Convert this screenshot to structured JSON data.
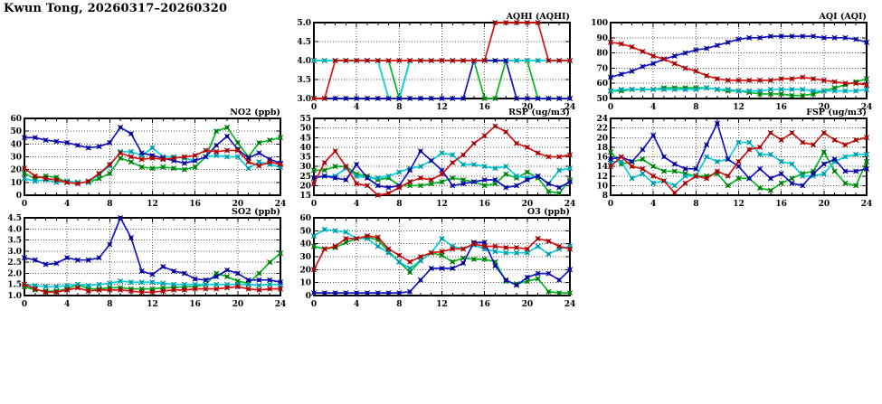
{
  "page": {
    "title": "Kwun Tong, 20260317–20260320"
  },
  "colors": {
    "red": "#dd1111",
    "blue": "#1414cc",
    "green": "#00b822",
    "cyan": "#00d2dd",
    "grid": "#555555",
    "frame": "#000000",
    "background": "#ffffff"
  },
  "chart_data": [
    {
      "id": "aqhi",
      "type": "line",
      "title": "AQHI (AQHI)",
      "xlim": [
        0,
        24
      ],
      "xticks": [
        0,
        4,
        8,
        12,
        16,
        20,
        24
      ],
      "x_minor_step": 1,
      "ylim": [
        3.0,
        5.0
      ],
      "yticks": [
        3.0,
        3.5,
        4.0,
        4.5,
        5.0
      ],
      "y_decimals": 1,
      "grid": true,
      "series": [
        {
          "name": "green",
          "color": "green",
          "values": [
            4,
            4,
            4,
            4,
            4,
            4,
            4,
            4,
            3,
            4,
            4,
            4,
            4,
            4,
            4,
            4,
            3,
            3,
            4,
            4,
            4,
            3,
            3,
            3,
            3
          ]
        },
        {
          "name": "cyan",
          "color": "cyan",
          "values": [
            4,
            4,
            4,
            4,
            4,
            4,
            4,
            3,
            3,
            4,
            4,
            4,
            4,
            4,
            4,
            4,
            4,
            4,
            4,
            4,
            4,
            4,
            4,
            4,
            4
          ]
        },
        {
          "name": "blue",
          "color": "blue",
          "values": [
            3,
            3,
            3,
            3,
            3,
            3,
            3,
            3,
            3,
            3,
            3,
            3,
            3,
            3,
            3,
            4,
            4,
            4,
            4,
            3,
            3,
            3,
            3,
            3,
            3
          ]
        },
        {
          "name": "red",
          "color": "red",
          "values": [
            3,
            3,
            4,
            4,
            4,
            4,
            4,
            4,
            4,
            4,
            4,
            4,
            4,
            4,
            4,
            4,
            4,
            5,
            5,
            5,
            5,
            5,
            4,
            4,
            4
          ]
        }
      ]
    },
    {
      "id": "aqi",
      "type": "line",
      "title": "AQI (AQI)",
      "xlim": [
        0,
        24
      ],
      "xticks": [
        0,
        4,
        8,
        12,
        16,
        20,
        24
      ],
      "x_minor_step": 1,
      "ylim": [
        50,
        100
      ],
      "yticks": [
        50,
        60,
        70,
        80,
        90,
        100
      ],
      "y_decimals": 0,
      "grid": true,
      "series": [
        {
          "name": "green",
          "color": "green",
          "values": [
            55,
            55,
            56,
            56,
            56,
            57,
            57,
            57,
            57,
            57,
            56,
            55,
            55,
            54,
            53,
            53,
            53,
            52,
            52,
            53,
            55,
            57,
            59,
            61,
            63
          ]
        },
        {
          "name": "cyan",
          "color": "cyan",
          "values": [
            55,
            56,
            56,
            56,
            56,
            56,
            56,
            56,
            56,
            57,
            56,
            56,
            55,
            55,
            55,
            56,
            56,
            56,
            56,
            55,
            55,
            55,
            55,
            55,
            56
          ]
        },
        {
          "name": "blue",
          "color": "blue",
          "values": [
            64,
            66,
            68,
            71,
            73,
            76,
            78,
            80,
            82,
            83,
            85,
            87,
            89,
            90,
            90,
            91,
            91,
            91,
            91,
            91,
            90,
            90,
            90,
            89,
            87
          ]
        },
        {
          "name": "red",
          "color": "red",
          "values": [
            87,
            86,
            84,
            81,
            78,
            76,
            73,
            70,
            68,
            65,
            63,
            62,
            62,
            62,
            62,
            62,
            63,
            63,
            64,
            63,
            62,
            61,
            60,
            60,
            59
          ]
        }
      ]
    },
    {
      "id": "no2",
      "type": "line",
      "title": "NO2 (ppb)",
      "xlim": [
        0,
        24
      ],
      "xticks": [
        0,
        4,
        8,
        12,
        16,
        20,
        24
      ],
      "x_minor_step": 1,
      "ylim": [
        0,
        60
      ],
      "yticks": [
        0,
        10,
        20,
        30,
        40,
        50,
        60
      ],
      "y_decimals": 0,
      "grid": true,
      "series": [
        {
          "name": "green",
          "color": "green",
          "values": [
            17,
            13,
            15,
            14,
            10,
            10,
            10,
            13,
            17,
            29,
            26,
            22,
            21,
            22,
            21,
            20,
            22,
            30,
            50,
            53,
            41,
            30,
            41,
            43,
            45
          ]
        },
        {
          "name": "cyan",
          "color": "cyan",
          "values": [
            13,
            11,
            12,
            10,
            11,
            10,
            10,
            16,
            23,
            34,
            34,
            31,
            37,
            30,
            30,
            29,
            27,
            30,
            31,
            30,
            30,
            21,
            26,
            24,
            22
          ]
        },
        {
          "name": "blue",
          "color": "blue",
          "values": [
            45,
            45,
            43,
            42,
            41,
            39,
            37,
            38,
            41,
            53,
            48,
            33,
            31,
            29,
            27,
            25,
            27,
            30,
            39,
            46,
            36,
            29,
            33,
            28,
            25
          ]
        },
        {
          "name": "red",
          "color": "red",
          "values": [
            21,
            15,
            13,
            12,
            10,
            9,
            11,
            17,
            24,
            33,
            30,
            28,
            29,
            28,
            29,
            30,
            31,
            35,
            34,
            35,
            35,
            26,
            23,
            26,
            24
          ]
        }
      ]
    },
    {
      "id": "rsp",
      "type": "line",
      "title": "RSP (ug/m3)",
      "xlim": [
        0,
        24
      ],
      "xticks": [
        0,
        4,
        8,
        12,
        16,
        20,
        24
      ],
      "x_minor_step": 1,
      "ylim": [
        15,
        55
      ],
      "yticks": [
        15,
        20,
        25,
        30,
        35,
        40,
        45,
        50,
        55
      ],
      "y_decimals": 0,
      "grid": true,
      "series": [
        {
          "name": "green",
          "color": "green",
          "values": [
            28,
            28,
            30,
            30,
            26,
            25,
            23,
            24,
            20,
            20,
            20,
            21,
            22,
            24,
            23,
            22,
            20,
            21,
            26,
            24,
            27,
            24,
            17,
            16,
            23
          ]
        },
        {
          "name": "cyan",
          "color": "cyan",
          "values": [
            24,
            25,
            25,
            29,
            25,
            24,
            24,
            25,
            27,
            29,
            30,
            33,
            37,
            36,
            31,
            31,
            30,
            29,
            30,
            25,
            24,
            25,
            21,
            28,
            29
          ]
        },
        {
          "name": "blue",
          "color": "blue",
          "values": [
            24,
            25,
            24,
            23,
            31,
            24,
            20,
            19,
            20,
            28,
            38,
            33,
            28,
            20,
            21,
            22,
            23,
            23,
            19,
            20,
            23,
            25,
            21,
            19,
            22
          ]
        },
        {
          "name": "red",
          "color": "red",
          "values": [
            21,
            32,
            38,
            30,
            21,
            20,
            15,
            16,
            19,
            22,
            24,
            23,
            26,
            32,
            36,
            42,
            46,
            51,
            48,
            42,
            40,
            37,
            35,
            35,
            36
          ]
        }
      ]
    },
    {
      "id": "fsp",
      "type": "line",
      "title": "FSP (ug/m3)",
      "xlim": [
        0,
        24
      ],
      "xticks": [
        0,
        4,
        8,
        12,
        16,
        20,
        24
      ],
      "x_minor_step": 1,
      "ylim": [
        8,
        24
      ],
      "yticks": [
        8,
        10,
        12,
        14,
        16,
        18,
        20,
        22,
        24
      ],
      "y_decimals": 0,
      "grid": true,
      "series": [
        {
          "name": "green",
          "color": "green",
          "values": [
            17,
            14.5,
            15,
            15.5,
            14,
            13,
            13,
            12.5,
            12,
            12,
            12.5,
            10,
            11.5,
            11.5,
            9.5,
            9,
            10.5,
            11.5,
            12.5,
            13,
            17,
            13,
            10.5,
            10,
            15
          ]
        },
        {
          "name": "cyan",
          "color": "cyan",
          "values": [
            15,
            15,
            11.5,
            12.5,
            10.5,
            11,
            10,
            12,
            12,
            16,
            15,
            15.5,
            19,
            19,
            16.5,
            16.5,
            15,
            14.5,
            12,
            12,
            12.5,
            15,
            16,
            16.5,
            16.5
          ]
        },
        {
          "name": "blue",
          "color": "blue",
          "values": [
            15.5,
            16,
            15,
            17.5,
            20.5,
            16,
            14.5,
            13.5,
            13.5,
            18.5,
            23,
            15.5,
            14,
            11.5,
            13.5,
            11.5,
            12.5,
            10.5,
            10,
            12.5,
            14.5,
            15.5,
            13,
            13,
            13.5
          ]
        },
        {
          "name": "red",
          "color": "red",
          "values": [
            14,
            16,
            14,
            13.5,
            12,
            11,
            8.5,
            10.5,
            12,
            11.5,
            13,
            12,
            15,
            17.5,
            18,
            21,
            19.5,
            21,
            19,
            18.5,
            21,
            19.5,
            18.5,
            19.5,
            20
          ]
        }
      ]
    },
    {
      "id": "so2",
      "type": "line",
      "title": "SO2 (ppb)",
      "xlim": [
        0,
        24
      ],
      "xticks": [
        0,
        4,
        8,
        12,
        16,
        20,
        24
      ],
      "x_minor_step": 1,
      "ylim": [
        1.0,
        4.5
      ],
      "yticks": [
        1.0,
        1.5,
        2.0,
        2.5,
        3.0,
        3.5,
        4.0,
        4.5
      ],
      "y_decimals": 1,
      "grid": true,
      "series": [
        {
          "name": "green",
          "color": "green",
          "values": [
            1.4,
            1.25,
            1.2,
            1.2,
            1.3,
            1.5,
            1.3,
            1.3,
            1.35,
            1.35,
            1.3,
            1.3,
            1.3,
            1.35,
            1.35,
            1.4,
            1.4,
            1.5,
            2.0,
            1.85,
            1.65,
            1.55,
            2.0,
            2.5,
            2.9
          ]
        },
        {
          "name": "cyan",
          "color": "cyan",
          "values": [
            1.5,
            1.45,
            1.4,
            1.4,
            1.45,
            1.5,
            1.45,
            1.5,
            1.55,
            1.65,
            1.6,
            1.6,
            1.6,
            1.55,
            1.5,
            1.5,
            1.5,
            1.5,
            1.5,
            1.5,
            1.5,
            1.5,
            1.45,
            1.5,
            1.5
          ]
        },
        {
          "name": "blue",
          "color": "blue",
          "values": [
            2.7,
            2.6,
            2.4,
            2.45,
            2.7,
            2.6,
            2.6,
            2.7,
            3.3,
            4.5,
            3.6,
            2.1,
            1.95,
            2.3,
            2.1,
            2.0,
            1.75,
            1.7,
            1.85,
            2.15,
            2.0,
            1.7,
            1.7,
            1.7,
            1.6
          ]
        },
        {
          "name": "red",
          "color": "red",
          "values": [
            1.5,
            1.3,
            1.15,
            1.15,
            1.25,
            1.35,
            1.2,
            1.25,
            1.25,
            1.25,
            1.2,
            1.15,
            1.15,
            1.2,
            1.25,
            1.25,
            1.3,
            1.3,
            1.3,
            1.35,
            1.4,
            1.3,
            1.25,
            1.3,
            1.3
          ]
        }
      ]
    },
    {
      "id": "o3",
      "type": "line",
      "title": "O3 (ppb)",
      "xlim": [
        0,
        24
      ],
      "xticks": [
        0,
        4,
        8,
        12,
        16,
        20,
        24
      ],
      "x_minor_step": 1,
      "ylim": [
        0,
        60
      ],
      "yticks": [
        0,
        10,
        20,
        30,
        40,
        50,
        60
      ],
      "y_decimals": 0,
      "grid": true,
      "series": [
        {
          "name": "green",
          "color": "green",
          "values": [
            38,
            36,
            37,
            41,
            44,
            45,
            43,
            34,
            26,
            18,
            27,
            33,
            31,
            26,
            29,
            28,
            28,
            26,
            11,
            9,
            11,
            13,
            3,
            2,
            2
          ]
        },
        {
          "name": "cyan",
          "color": "cyan",
          "values": [
            46,
            51,
            50,
            49,
            44,
            44,
            38,
            33,
            26,
            21,
            27,
            33,
            44,
            38,
            36,
            39,
            36,
            34,
            33,
            33,
            33,
            38,
            32,
            36,
            38
          ]
        },
        {
          "name": "blue",
          "color": "blue",
          "values": [
            2,
            2,
            2,
            2,
            2,
            2,
            2,
            2,
            2,
            3,
            12,
            21,
            21,
            21,
            25,
            41,
            41,
            23,
            12,
            8,
            14,
            17,
            17,
            12,
            20
          ]
        },
        {
          "name": "red",
          "color": "red",
          "values": [
            20,
            36,
            38,
            44,
            44,
            46,
            45,
            36,
            31,
            26,
            30,
            33,
            34,
            36,
            36,
            40,
            38,
            38,
            37,
            37,
            36,
            44,
            42,
            38,
            36
          ]
        }
      ]
    }
  ]
}
